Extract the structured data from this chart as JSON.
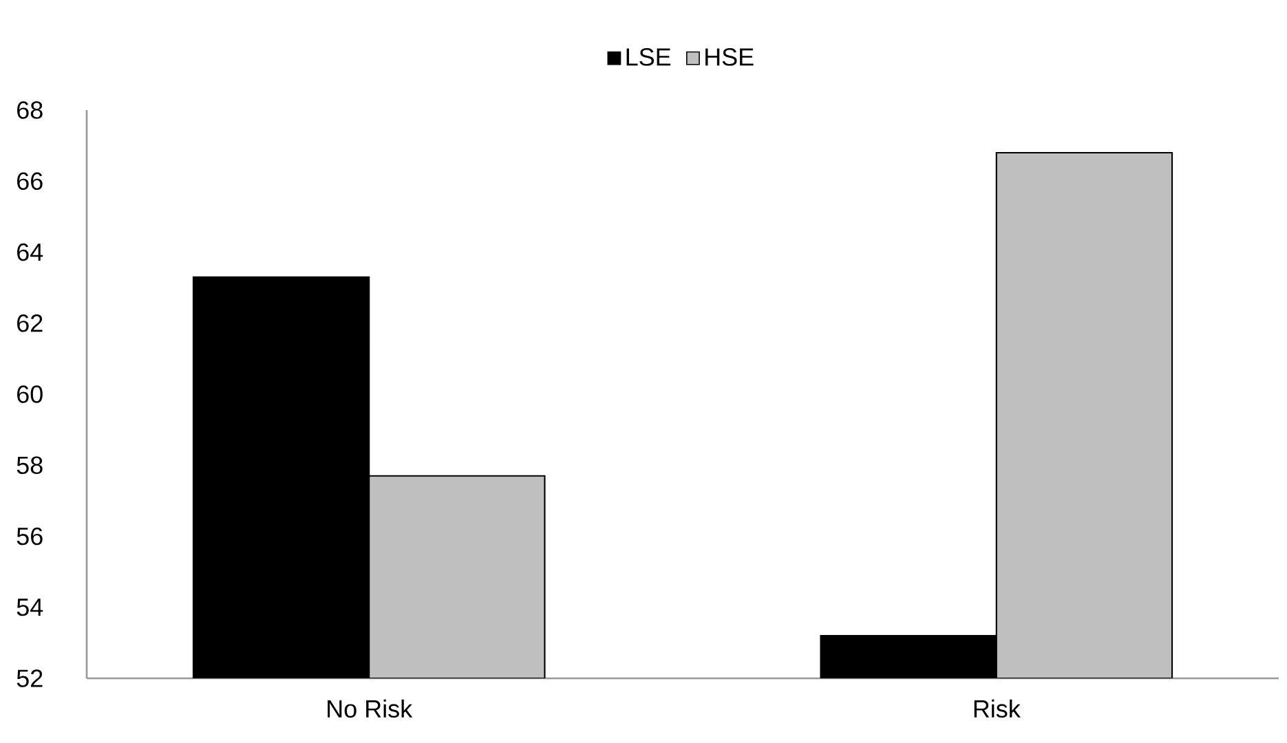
{
  "chart_data": {
    "type": "bar",
    "categories": [
      "No Risk",
      "Risk"
    ],
    "series": [
      {
        "name": "LSE",
        "color": "#000000",
        "values": [
          63.3,
          53.2
        ]
      },
      {
        "name": "HSE",
        "color": "#bfbfbf",
        "values": [
          57.7,
          66.8
        ]
      }
    ],
    "ylim": [
      52,
      68
    ],
    "yticks": [
      52,
      54,
      56,
      58,
      60,
      62,
      64,
      66,
      68
    ],
    "legend": "top"
  }
}
